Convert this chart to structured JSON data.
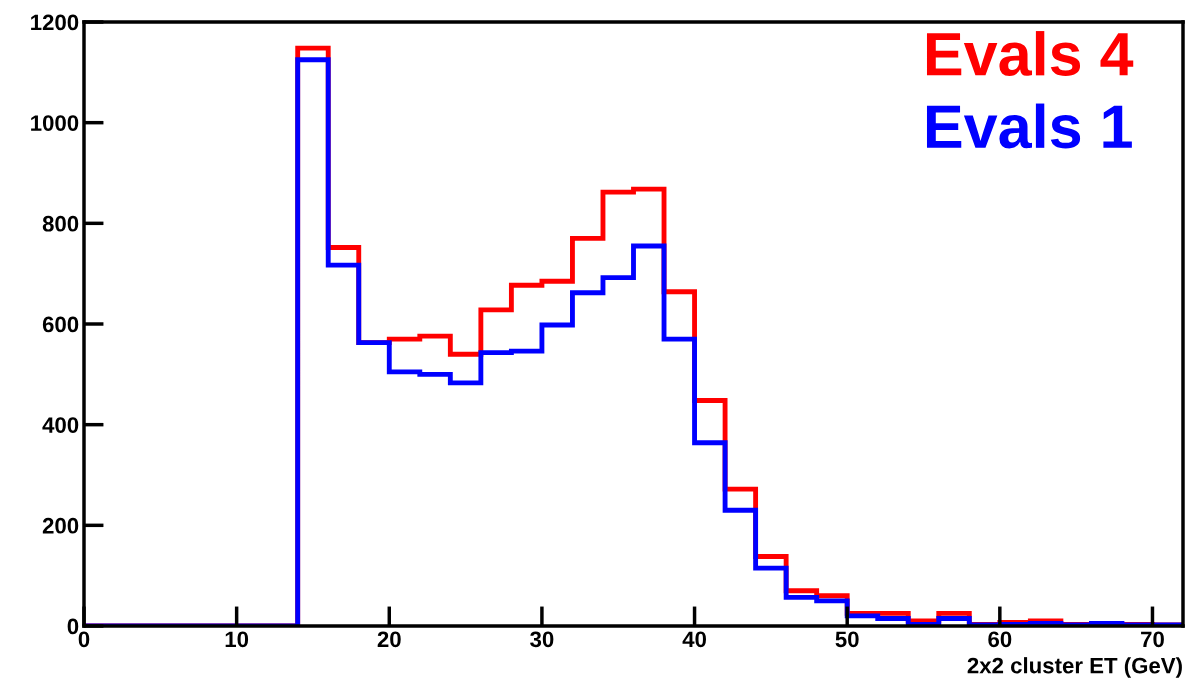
{
  "chart_data": {
    "type": "histogram",
    "xlabel": "2x2 cluster ET (GeV)",
    "bins": [
      0,
      2,
      4,
      6,
      8,
      10,
      12,
      14,
      16,
      18,
      20,
      22,
      24,
      26,
      28,
      30,
      32,
      34,
      36,
      38,
      40,
      42,
      44,
      46,
      48,
      50,
      52,
      54,
      56,
      58,
      60,
      62,
      64,
      66,
      68,
      70,
      72
    ],
    "series": [
      {
        "name": "Evals 4",
        "color": "#ff0000",
        "values": [
          0,
          0,
          0,
          0,
          0,
          0,
          0,
          1148,
          752,
          563,
          570,
          576,
          540,
          628,
          677,
          685,
          770,
          862,
          868,
          664,
          448,
          272,
          138,
          70,
          60,
          25,
          25,
          10,
          25,
          3,
          7,
          10,
          3,
          3,
          3,
          2
        ]
      },
      {
        "name": "Evals 1",
        "color": "#0000ff",
        "values": [
          0,
          0,
          0,
          0,
          0,
          0,
          0,
          1125,
          717,
          563,
          505,
          500,
          483,
          543,
          546,
          598,
          662,
          692,
          755,
          570,
          364,
          230,
          115,
          57,
          50,
          20,
          15,
          3,
          15,
          2,
          3,
          5,
          2,
          5,
          2,
          2
        ]
      }
    ],
    "xlim": [
      0,
      72
    ],
    "ylim": [
      0,
      1200
    ],
    "xticks": [
      0,
      10,
      20,
      30,
      40,
      50,
      60,
      70
    ],
    "yticks": [
      0,
      200,
      400,
      600,
      800,
      1000,
      1200
    ],
    "grid": false
  }
}
